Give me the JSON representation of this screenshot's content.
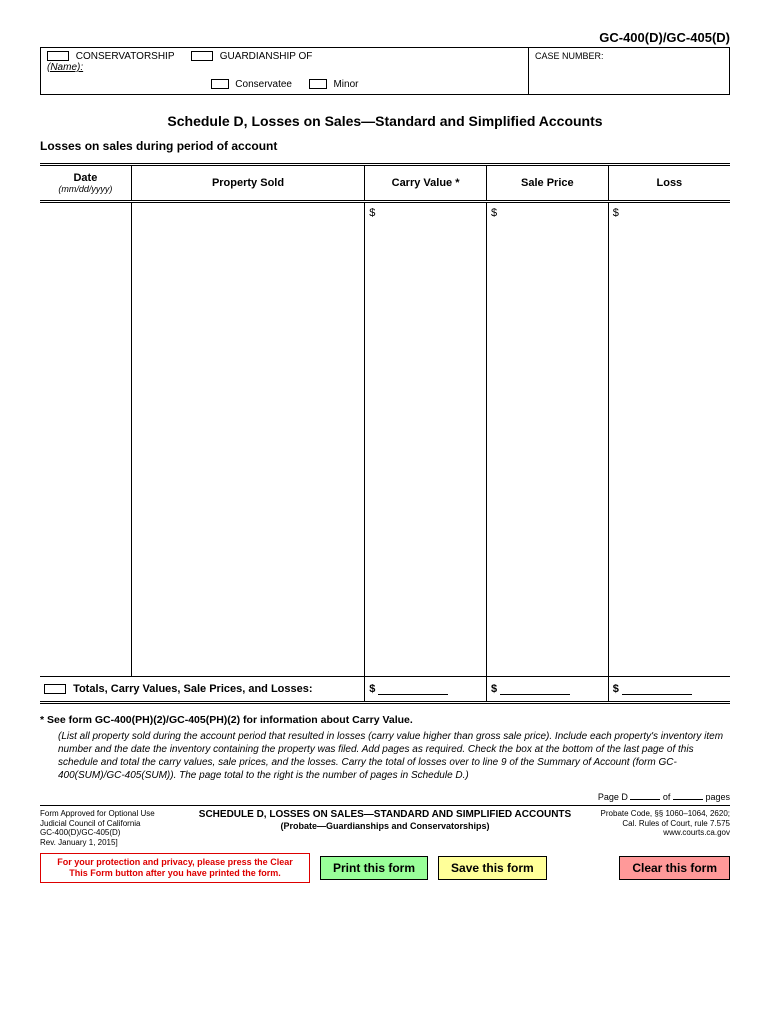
{
  "form_number": "GC-400(D)/GC-405(D)",
  "header": {
    "conservatorship_label": "CONSERVATORSHIP",
    "guardianship_label": "GUARDIANSHIP OF",
    "name_label": "(Name):",
    "conservatee_label": "Conservatee",
    "minor_label": "Minor",
    "case_number_label": "CASE NUMBER:"
  },
  "title": "Schedule D, Losses on Sales—Standard and Simplified Accounts",
  "subtitle": "Losses on sales during period of account",
  "columns": {
    "date": "Date",
    "date_sub": "(mm/dd/yyyy)",
    "property": "Property Sold",
    "carry": "Carry Value *",
    "sale": "Sale Price",
    "loss": "Loss"
  },
  "currency": "$",
  "totals_label": "Totals, Carry Values, Sale Prices, and Losses:",
  "footnote_lead": "*   See form GC-400(PH)(2)/GC-405(PH)(2) for information about Carry Value.",
  "footnote_body": "(List all property sold during the account period that resulted in losses (carry value higher than gross sale price). Include each property's inventory item number and the date the inventory containing the property was filed. Add pages as required. Check the box  at the bottom of the last page of this schedule and total the carry values, sale prices, and the losses. Carry the total of losses over to line 9 of the Summary of Account (form GC-400(SUM)/GC-405(SUM)). The page total to the right is the number of pages in Schedule D.)",
  "page_info": {
    "prefix": "Page D",
    "of": "of",
    "suffix": "pages"
  },
  "footer": {
    "left1": "Form Approved for Optional Use",
    "left2": "Judicial Council of California",
    "left3": "GC-400(D)/GC-405(D)",
    "left4": "Rev. January 1, 2015]",
    "center1": "SCHEDULE D, LOSSES ON SALES—STANDARD AND SIMPLIFIED ACCOUNTS",
    "center2": "(Probate—Guardianships and Conservatorships)",
    "right1": "Probate Code, §§ 1060–1064, 2620;",
    "right2": "Cal. Rules  of Court, rule 7.575",
    "right3": "www.courts.ca.gov"
  },
  "privacy": "For your protection and privacy, please press the Clear This Form button after you have printed the form.",
  "buttons": {
    "print": "Print this form",
    "save": "Save this form",
    "clear": "Clear this form"
  }
}
